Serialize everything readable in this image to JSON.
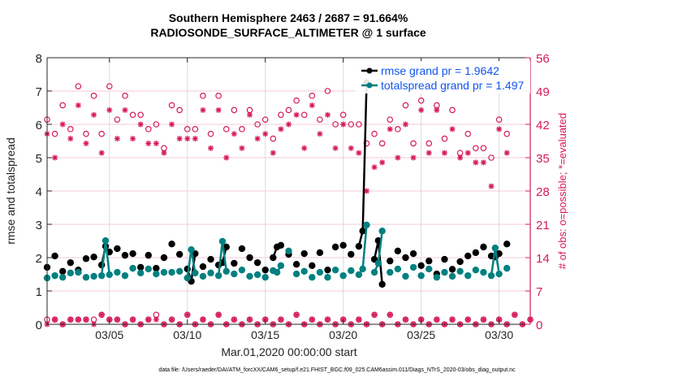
{
  "chart_data": {
    "type": "line",
    "title": "Southern Hemisphere 2463 / 2687 = 91.664%",
    "subtitle": "RADIOSONDE_SURFACE_ALTIMETER @ 1 surface",
    "xlabel": "Mar.01,2020 00:00:00 start",
    "ylabel": "rmse and totalspread",
    "y2label": "# of obs: o=possible; *=evaluated",
    "footer": "data file: /Users/raeder/DAI/ATM_forcXX/CAM6_setup/f.e21.FHIST_BGC.f09_025.CAM6assim.011/Diags_NTrS_2020-03/obs_diag_output.nc",
    "x_unit": "days since Mar.01,2020 00:00",
    "xlim": [
      0,
      31
    ],
    "ylim": [
      0,
      8
    ],
    "y2lim": [
      0,
      56
    ],
    "xticks": [
      {
        "value": 4,
        "label": "03/05"
      },
      {
        "value": 9,
        "label": "03/10"
      },
      {
        "value": 14,
        "label": "03/15"
      },
      {
        "value": 19,
        "label": "03/20"
      },
      {
        "value": 24,
        "label": "03/25"
      },
      {
        "value": 29,
        "label": "03/30"
      }
    ],
    "yticks": [
      "0",
      "1",
      "2",
      "3",
      "4",
      "5",
      "6",
      "7",
      "8"
    ],
    "y2ticks": [
      "0",
      "7",
      "14",
      "21",
      "28",
      "35",
      "42",
      "49",
      "56"
    ],
    "grid": true,
    "legend": {
      "placement": "top-right",
      "entries": [
        "rmse grand pr = 1.9642",
        "totalspread grand pr = 1.497"
      ]
    },
    "colors": {
      "rmse": "#000000",
      "spread": "#008080",
      "obs": "#d6195a",
      "legend_text": "#1155ee"
    },
    "series": [
      {
        "name": "rmse",
        "x": [
          0,
          0.5,
          1,
          1.5,
          2,
          2.5,
          3,
          3.5,
          3.75,
          4,
          4.5,
          5,
          5.5,
          6,
          6.5,
          7,
          7.5,
          8,
          8.5,
          9,
          9.25,
          9.5,
          10,
          10.5,
          11,
          11.25,
          11.5,
          12,
          12.5,
          13,
          13.5,
          14,
          14.5,
          14.75,
          15,
          15.5,
          16,
          16.5,
          17,
          17.5,
          18,
          18.5,
          19,
          19.5,
          20,
          20.25,
          20.5,
          21,
          21.25,
          21.5,
          22,
          22.5,
          23,
          23.5,
          24,
          24.5,
          25,
          25.5,
          26,
          26.5,
          27,
          27.5,
          28,
          28.5,
          28.75,
          29,
          29.5
        ],
        "values": [
          1.71,
          2.05,
          1.59,
          1.85,
          1.63,
          1.97,
          2.02,
          1.78,
          2.34,
          2.17,
          2.27,
          2.07,
          2.12,
          1.71,
          2.07,
          1.68,
          2.0,
          2.41,
          2.1,
          1.66,
          1.29,
          2.12,
          1.73,
          1.95,
          1.78,
          1.85,
          2.32,
          1.83,
          2.27,
          2.0,
          1.85,
          1.63,
          2.0,
          2.32,
          2.37,
          2.1,
          1.8,
          2.12,
          1.76,
          2.15,
          1.63,
          2.32,
          2.37,
          2.1,
          2.34,
          2.8,
          7.25,
          1.95,
          2.51,
          1.2,
          1.9,
          2.2,
          2.0,
          2.12,
          1.76,
          1.9,
          1.51,
          1.95,
          1.65,
          1.88,
          2.05,
          2.15,
          2.32,
          2.05,
          2.02,
          2.12,
          2.41
        ]
      },
      {
        "name": "totalspread",
        "x": [
          0,
          0.5,
          1,
          1.5,
          2,
          2.5,
          3,
          3.5,
          3.75,
          4,
          4.5,
          5,
          5.5,
          6,
          6.5,
          7,
          7.5,
          8,
          8.5,
          9,
          9.25,
          9.5,
          10,
          10.5,
          11,
          11.25,
          11.5,
          12,
          12.5,
          13,
          13.5,
          14,
          14.5,
          14.75,
          15,
          15.5,
          16,
          16.5,
          17,
          17.5,
          18,
          18.5,
          19,
          19.5,
          20,
          20.25,
          20.5,
          21,
          21.25,
          21.5,
          22,
          22.5,
          23,
          23.5,
          24,
          24.5,
          25,
          25.5,
          26,
          26.5,
          27,
          27.5,
          28,
          28.5,
          28.75,
          29,
          29.5
        ],
        "values": [
          1.39,
          1.46,
          1.41,
          1.54,
          1.56,
          1.41,
          1.44,
          1.46,
          2.51,
          1.49,
          1.56,
          1.46,
          1.68,
          1.54,
          1.66,
          1.51,
          1.56,
          1.56,
          1.59,
          1.39,
          2.24,
          1.54,
          1.44,
          1.54,
          1.46,
          2.49,
          1.59,
          1.51,
          1.63,
          1.44,
          1.49,
          1.41,
          1.61,
          1.56,
          1.76,
          2.2,
          1.51,
          1.59,
          1.41,
          1.56,
          1.41,
          1.63,
          1.46,
          1.61,
          1.49,
          1.66,
          2.98,
          1.56,
          1.83,
          2.8,
          1.56,
          1.66,
          1.44,
          1.71,
          1.46,
          1.66,
          1.41,
          1.56,
          1.44,
          1.59,
          1.46,
          1.63,
          1.56,
          1.46,
          2.29,
          1.51,
          1.68
        ]
      },
      {
        "name": "obs possible (upper)",
        "x": [
          0,
          0.5,
          1,
          1.5,
          2,
          2.5,
          3,
          3.5,
          4,
          4.5,
          5,
          5.5,
          6,
          6.5,
          7,
          7.5,
          8,
          8.5,
          9,
          9.5,
          10,
          10.5,
          11,
          11.5,
          12,
          12.5,
          13,
          13.5,
          14,
          14.5,
          15,
          15.5,
          16,
          16.5,
          17,
          17.5,
          18,
          18.5,
          19,
          19.5,
          20,
          20.5,
          21,
          21.5,
          22,
          22.5,
          23,
          23.5,
          24,
          24.5,
          25,
          25.5,
          26,
          26.5,
          27,
          27.5,
          28,
          28.5,
          29,
          29.5
        ],
        "values": [
          43,
          40,
          46,
          41,
          50,
          40,
          48,
          40,
          50,
          43,
          48,
          44,
          44,
          41,
          42,
          37,
          46,
          45,
          41,
          41,
          48,
          40,
          48,
          41,
          45,
          41,
          45,
          42,
          43,
          39,
          44,
          45,
          47,
          44,
          48,
          43,
          49,
          42,
          44,
          42,
          42,
          38,
          40,
          38,
          43,
          41,
          46,
          38,
          47,
          38,
          46,
          39,
          45,
          36,
          40,
          37,
          37,
          35,
          43,
          40
        ]
      },
      {
        "name": "obs evaluated (upper)",
        "x": [
          0,
          0.5,
          1,
          1.5,
          2,
          2.5,
          3,
          3.5,
          4,
          4.5,
          5,
          5.5,
          6,
          6.5,
          7,
          7.5,
          8,
          8.5,
          9,
          9.5,
          10,
          10.5,
          11,
          11.5,
          12,
          12.5,
          13,
          13.5,
          14,
          14.5,
          15,
          15.5,
          16,
          16.5,
          17,
          17.5,
          18,
          18.5,
          19,
          19.5,
          20,
          20.5,
          21,
          21.5,
          22,
          22.5,
          23,
          23.5,
          24,
          24.5,
          25,
          25.5,
          26,
          26.5,
          27,
          27.5,
          28,
          28.5,
          29,
          29.5
        ],
        "values": [
          40,
          35,
          42,
          39,
          46,
          38,
          44,
          36,
          45,
          39,
          45,
          39,
          42,
          38,
          38,
          36,
          42,
          39,
          39,
          39,
          45,
          37,
          45,
          35,
          40,
          37,
          44,
          39,
          40,
          36,
          41,
          42,
          44,
          37,
          46,
          40,
          44,
          37,
          42,
          37,
          36,
          28,
          33,
          34,
          41,
          35,
          42,
          35,
          45,
          36,
          45,
          36,
          41,
          35,
          36,
          34,
          34,
          29,
          41,
          36
        ]
      },
      {
        "name": "obs possible (lower)",
        "x": [
          0,
          0.5,
          1,
          1.5,
          2,
          2.5,
          3,
          3.5,
          4,
          4.5,
          5,
          5.5,
          6,
          6.5,
          7,
          7.5,
          8,
          8.5,
          9,
          9.5,
          10,
          10.5,
          11,
          11.5,
          12,
          12.5,
          13,
          13.5,
          14,
          14.5,
          15,
          15.5,
          16,
          16.5,
          17,
          17.5,
          18,
          18.5,
          19,
          19.5,
          20,
          20.5,
          21,
          21.5,
          22,
          22.5,
          23,
          23.5,
          24,
          24.5,
          25,
          25.5,
          26,
          26.5,
          27,
          27.5,
          28,
          28.5,
          29,
          29.5,
          30,
          30.5,
          31
        ],
        "values": [
          1,
          1,
          0,
          1,
          1,
          1,
          1,
          2,
          1,
          1,
          0,
          1,
          0,
          1,
          2,
          0,
          1,
          0,
          2,
          0,
          1,
          0,
          2,
          0,
          1,
          0,
          1,
          0,
          1,
          0,
          1,
          0,
          2,
          0,
          1,
          0,
          1,
          0,
          1,
          0,
          1,
          0,
          2,
          0,
          2,
          0,
          1,
          0,
          1,
          0,
          1,
          0,
          1,
          0,
          1,
          0,
          1,
          0,
          1,
          0,
          2,
          0,
          1
        ]
      },
      {
        "name": "obs evaluated (lower)",
        "x": [
          0,
          0.5,
          1,
          1.5,
          2,
          2.5,
          3,
          3.5,
          4,
          4.5,
          5,
          5.5,
          6,
          6.5,
          7,
          7.5,
          8,
          8.5,
          9,
          9.5,
          10,
          10.5,
          11,
          11.5,
          12,
          12.5,
          13,
          13.5,
          14,
          14.5,
          15,
          15.5,
          16,
          16.5,
          17,
          17.5,
          18,
          18.5,
          19,
          19.5,
          20,
          20.5,
          21,
          21.5,
          22,
          22.5,
          23,
          23.5,
          24,
          24.5,
          25,
          25.5,
          26,
          26.5,
          27,
          27.5,
          28,
          28.5,
          29,
          29.5,
          30,
          30.5,
          31
        ],
        "values": [
          0,
          1,
          0,
          1,
          1,
          1,
          0,
          2,
          1,
          1,
          0,
          1,
          0,
          1,
          1,
          0,
          1,
          0,
          2,
          0,
          1,
          0,
          2,
          0,
          1,
          0,
          1,
          0,
          1,
          0,
          1,
          0,
          2,
          0,
          1,
          0,
          1,
          0,
          1,
          0,
          1,
          0,
          2,
          0,
          2,
          0,
          1,
          0,
          1,
          0,
          1,
          0,
          1,
          0,
          1,
          0,
          1,
          0,
          1,
          0,
          2,
          0,
          1
        ]
      }
    ]
  }
}
